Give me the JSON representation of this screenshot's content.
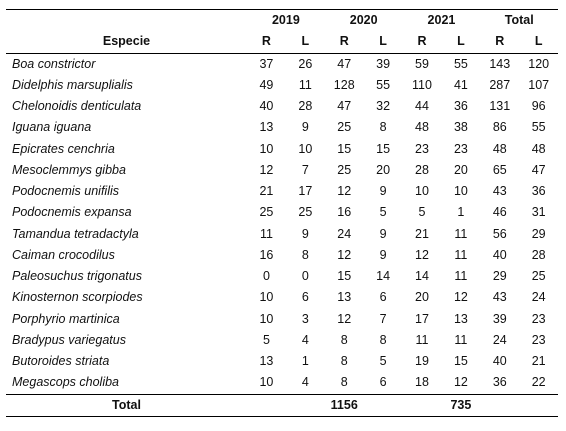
{
  "header": {
    "years": [
      "2019",
      "2020",
      "2021",
      "Total"
    ],
    "species_label": "Especie",
    "sub_labels": [
      "R",
      "L",
      "R",
      "L",
      "R",
      "L",
      "R",
      "L"
    ]
  },
  "rows": [
    {
      "species": "Boa constrictor",
      "values": [
        "37",
        "26",
        "47",
        "39",
        "59",
        "55",
        "143",
        "120"
      ]
    },
    {
      "species": "Didelphis marsuplialis",
      "values": [
        "49",
        "11",
        "128",
        "55",
        "110",
        "41",
        "287",
        "107"
      ]
    },
    {
      "species": "Chelonoidis denticulata",
      "values": [
        "40",
        "28",
        "47",
        "32",
        "44",
        "36",
        "131",
        "96"
      ]
    },
    {
      "species": "Iguana iguana",
      "values": [
        "13",
        "9",
        "25",
        "8",
        "48",
        "38",
        "86",
        "55"
      ]
    },
    {
      "species": "Epicrates cenchria",
      "values": [
        "10",
        "10",
        "15",
        "15",
        "23",
        "23",
        "48",
        "48"
      ]
    },
    {
      "species": "Mesoclemmys gibba",
      "values": [
        "12",
        "7",
        "25",
        "20",
        "28",
        "20",
        "65",
        "47"
      ]
    },
    {
      "species": "Podocnemis unifilis",
      "values": [
        "21",
        "17",
        "12",
        "9",
        "10",
        "10",
        "43",
        "36"
      ]
    },
    {
      "species": "Podocnemis expansa",
      "values": [
        "25",
        "25",
        "16",
        "5",
        "5",
        "1",
        "46",
        "31"
      ]
    },
    {
      "species": "Tamandua tetradactyla",
      "values": [
        "11",
        "9",
        "24",
        "9",
        "21",
        "11",
        "56",
        "29"
      ]
    },
    {
      "species": "Caiman crocodilus",
      "values": [
        "16",
        "8",
        "12",
        "9",
        "12",
        "11",
        "40",
        "28"
      ]
    },
    {
      "species": "Paleosuchus trigonatus",
      "values": [
        "0",
        "0",
        "15",
        "14",
        "14",
        "11",
        "29",
        "25"
      ]
    },
    {
      "species": "Kinosternon scorpiodes",
      "values": [
        "10",
        "6",
        "13",
        "6",
        "20",
        "12",
        "43",
        "24"
      ]
    },
    {
      "species": "Porphyrio martinica",
      "values": [
        "10",
        "3",
        "12",
        "7",
        "17",
        "13",
        "39",
        "23"
      ]
    },
    {
      "species": "Bradypus variegatus",
      "values": [
        "5",
        "4",
        "8",
        "8",
        "11",
        "11",
        "24",
        "23"
      ]
    },
    {
      "species": "Butoroides striata",
      "values": [
        "13",
        "1",
        "8",
        "5",
        "19",
        "15",
        "40",
        "21"
      ]
    },
    {
      "species": "Megascops choliba",
      "values": [
        "10",
        "4",
        "8",
        "6",
        "18",
        "12",
        "36",
        "22"
      ]
    }
  ],
  "footer": {
    "label": "Total",
    "total_r": "1156",
    "total_l": "735"
  }
}
